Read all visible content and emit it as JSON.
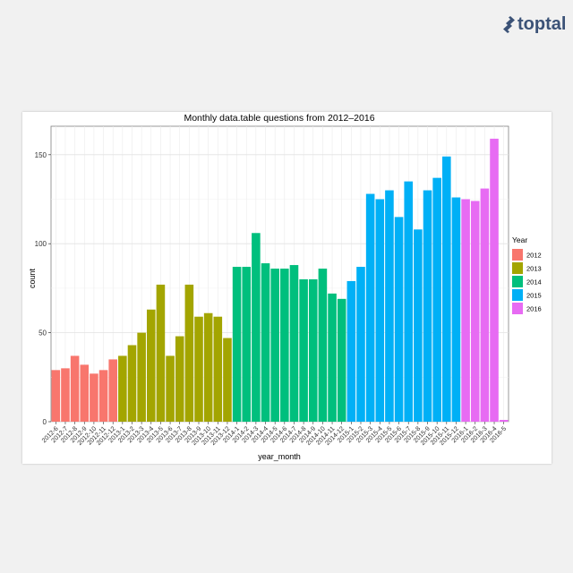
{
  "brand": {
    "name": "toptal",
    "color": "#3b5277"
  },
  "chart_data": {
    "type": "bar",
    "title": "Monthly data.table questions from 2012–2016",
    "xlabel": "year_month",
    "ylabel": "count",
    "ylim": [
      0,
      166
    ],
    "yticks": [
      0,
      50,
      100,
      150
    ],
    "grid": true,
    "legend": {
      "title": "Year",
      "position": "right"
    },
    "series": [
      {
        "name": "2012",
        "color": "#f8766d",
        "categories": [
          "2012-6",
          "2012-7",
          "2012-8",
          "2012-9",
          "2012-10",
          "2012-11",
          "2012-12"
        ],
        "values": [
          29,
          30,
          37,
          32,
          27,
          29,
          35
        ]
      },
      {
        "name": "2013",
        "color": "#a3a500",
        "categories": [
          "2013-1",
          "2013-2",
          "2013-3",
          "2013-4",
          "2013-5",
          "2013-6",
          "2013-7",
          "2013-8",
          "2013-9",
          "2013-10",
          "2013-11",
          "2013-12"
        ],
        "values": [
          37,
          43,
          50,
          63,
          77,
          37,
          48,
          77,
          59,
          61,
          59,
          47
        ]
      },
      {
        "name": "2014",
        "color": "#00bf7d",
        "categories": [
          "2014-1",
          "2014-2",
          "2014-3",
          "2014-4",
          "2014-5",
          "2014-6",
          "2014-7",
          "2014-8",
          "2014-9",
          "2014-10",
          "2014-11",
          "2014-12"
        ],
        "values": [
          87,
          87,
          106,
          89,
          86,
          86,
          88,
          80,
          80,
          86,
          72,
          69
        ]
      },
      {
        "name": "2015",
        "color": "#00b0f6",
        "categories": [
          "2015-1",
          "2015-2",
          "2015-3",
          "2015-4",
          "2015-5",
          "2015-6",
          "2015-7",
          "2015-8",
          "2015-9",
          "2015-10",
          "2015-11",
          "2015-12"
        ],
        "values": [
          79,
          87,
          128,
          125,
          130,
          115,
          135,
          108,
          130,
          137,
          149,
          126
        ]
      },
      {
        "name": "2016",
        "color": "#e76bf3",
        "categories": [
          "2016-1",
          "2016-2",
          "2016-3",
          "2016-4",
          "2016-5"
        ],
        "values": [
          125,
          124,
          131,
          159,
          1
        ]
      }
    ]
  }
}
